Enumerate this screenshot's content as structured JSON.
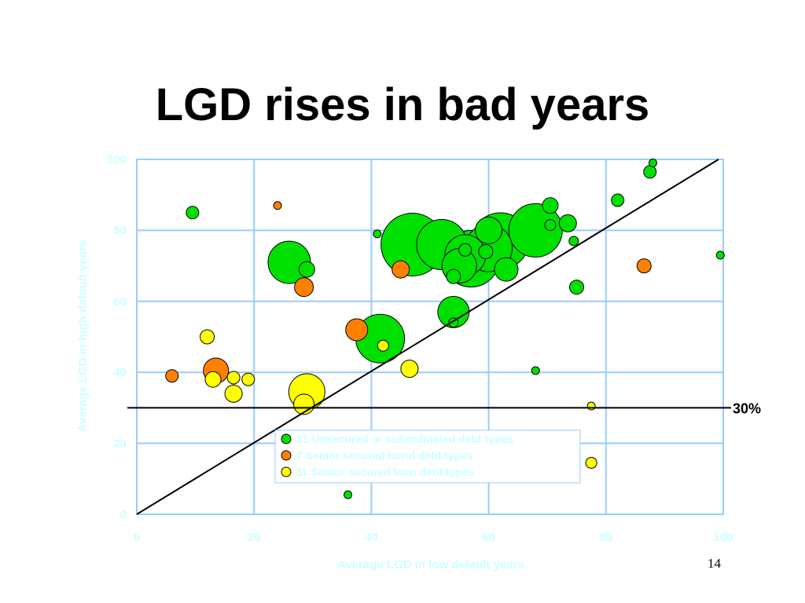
{
  "slide": {
    "title": "LGD rises in bad years",
    "page_number": "14"
  },
  "colors": {
    "unsecured": "#00e000",
    "bond": "#ff8000",
    "loan": "#ffff00",
    "grid": "#99ccff",
    "label_text": "#ccffff"
  },
  "chart_data": {
    "type": "scatter",
    "xlabel": "Average LGD in low default years",
    "ylabel": "Average LGD in high default years",
    "xlim": [
      0,
      100
    ],
    "ylim": [
      0,
      100
    ],
    "xticks": [
      "0",
      "20",
      "40",
      "60",
      "80",
      "100"
    ],
    "yticks": [
      "0",
      "20",
      "40",
      "60",
      "80",
      "100"
    ],
    "grid": true,
    "diagonal_line": {
      "from": [
        0,
        0
      ],
      "to": [
        100,
        100
      ]
    },
    "reference_line": {
      "y": 30,
      "label": "30%"
    },
    "legend_position": "bottom-center",
    "series": [
      {
        "name": "31 Unsecured or subordinated debt types",
        "color": "#00e000",
        "points": [
          {
            "x": 47,
            "y": 76,
            "size": 40
          },
          {
            "x": 52,
            "y": 76,
            "size": 32
          },
          {
            "x": 57,
            "y": 72,
            "size": 36
          },
          {
            "x": 62,
            "y": 77,
            "size": 36
          },
          {
            "x": 60,
            "y": 75,
            "size": 30
          },
          {
            "x": 56,
            "y": 73,
            "size": 26
          },
          {
            "x": 68,
            "y": 80,
            "size": 34
          },
          {
            "x": 41.5,
            "y": 49.5,
            "size": 31
          },
          {
            "x": 26,
            "y": 71,
            "size": 27
          },
          {
            "x": 54,
            "y": 57,
            "size": 20
          },
          {
            "x": 55,
            "y": 70,
            "size": 22
          },
          {
            "x": 63,
            "y": 69,
            "size": 15
          },
          {
            "x": 60,
            "y": 80,
            "size": 17
          },
          {
            "x": 73.5,
            "y": 82,
            "size": 11
          },
          {
            "x": 70.5,
            "y": 87,
            "size": 10
          },
          {
            "x": 9.5,
            "y": 85,
            "size": 8
          },
          {
            "x": 29,
            "y": 69,
            "size": 10
          },
          {
            "x": 82,
            "y": 88.5,
            "size": 8
          },
          {
            "x": 87.5,
            "y": 96.5,
            "size": 8
          },
          {
            "x": 88,
            "y": 99,
            "size": 5
          },
          {
            "x": 75,
            "y": 64,
            "size": 9
          },
          {
            "x": 99.5,
            "y": 73,
            "size": 5
          },
          {
            "x": 74.5,
            "y": 77,
            "size": 6
          },
          {
            "x": 70.5,
            "y": 81.5,
            "size": 7
          },
          {
            "x": 68,
            "y": 40.5,
            "size": 5
          },
          {
            "x": 36,
            "y": 5.5,
            "size": 5
          },
          {
            "x": 41,
            "y": 79,
            "size": 5
          },
          {
            "x": 54,
            "y": 54,
            "size": 6
          },
          {
            "x": 54,
            "y": 67,
            "size": 9
          },
          {
            "x": 56,
            "y": 74.5,
            "size": 8
          },
          {
            "x": 59.5,
            "y": 74,
            "size": 9
          }
        ]
      },
      {
        "name": "7 Senior secured bond debt types",
        "color": "#ff8000",
        "points": [
          {
            "x": 13.5,
            "y": 40.5,
            "size": 16
          },
          {
            "x": 6,
            "y": 39,
            "size": 8
          },
          {
            "x": 24,
            "y": 87,
            "size": 5
          },
          {
            "x": 28.5,
            "y": 64,
            "size": 12
          },
          {
            "x": 37.5,
            "y": 52,
            "size": 14
          },
          {
            "x": 45,
            "y": 69,
            "size": 11
          },
          {
            "x": 86.5,
            "y": 70,
            "size": 9
          }
        ]
      },
      {
        "name": "11 Senior secured loan debt types",
        "color": "#ffff00",
        "points": [
          {
            "x": 12,
            "y": 50,
            "size": 9
          },
          {
            "x": 13,
            "y": 38,
            "size": 10
          },
          {
            "x": 16.5,
            "y": 34,
            "size": 11
          },
          {
            "x": 16.5,
            "y": 38.5,
            "size": 8
          },
          {
            "x": 19,
            "y": 38,
            "size": 8
          },
          {
            "x": 29,
            "y": 34.5,
            "size": 23
          },
          {
            "x": 28.5,
            "y": 31,
            "size": 13
          },
          {
            "x": 42,
            "y": 47.5,
            "size": 7
          },
          {
            "x": 46.5,
            "y": 41,
            "size": 11
          },
          {
            "x": 77.5,
            "y": 30.5,
            "size": 5
          },
          {
            "x": 77.5,
            "y": 14.5,
            "size": 7
          }
        ]
      }
    ]
  }
}
